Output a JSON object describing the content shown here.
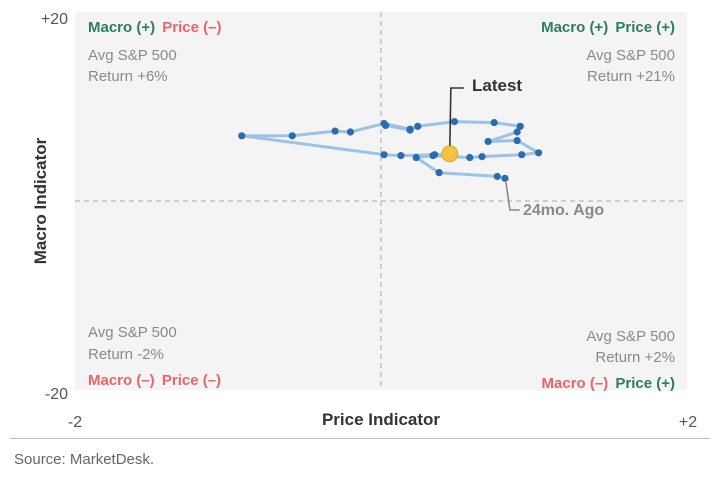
{
  "chart_data": {
    "type": "line",
    "xlabel": "Price Indicator",
    "ylabel": "Macro Indicator",
    "xlim": [
      -2,
      2
    ],
    "ylim": [
      -20,
      20
    ],
    "x_tick_labels": [
      "-2",
      "+2"
    ],
    "y_tick_labels": [
      "+20",
      "-20"
    ],
    "grid": false,
    "quadrants": {
      "top_left": {
        "macro": "Macro (+)",
        "price": "Price (–)",
        "avg_line1": "Avg S&P 500",
        "avg_line2": "Return +6%"
      },
      "top_right": {
        "macro": "Macro (+)",
        "price": "Price (+)",
        "avg_line1": "Avg S&P 500",
        "avg_line2": "Return +21%"
      },
      "bottom_left": {
        "macro": "Macro (–)",
        "price": "Price (–)",
        "avg_line1": "Avg S&P 500",
        "avg_line2": "Return -2%"
      },
      "bottom_right": {
        "macro": "Macro (–)",
        "price": "Price (+)",
        "avg_line1": "Avg S&P 500",
        "avg_line2": "Return +2%"
      }
    },
    "annotations": {
      "latest": "Latest",
      "ago": "24mo. Ago"
    },
    "series": [
      {
        "points": [
          {
            "x": 0.81,
            "y": 2.4
          },
          {
            "x": 0.76,
            "y": 2.6
          },
          {
            "x": 0.38,
            "y": 3.0
          },
          {
            "x": 0.23,
            "y": 4.6
          },
          {
            "x": 0.34,
            "y": 4.8
          },
          {
            "x": 0.58,
            "y": 4.6
          },
          {
            "x": 0.66,
            "y": 4.7
          },
          {
            "x": 0.92,
            "y": 4.9
          },
          {
            "x": 1.03,
            "y": 5.1
          },
          {
            "x": 0.89,
            "y": 6.4
          },
          {
            "x": 0.7,
            "y": 6.3
          },
          {
            "x": 0.89,
            "y": 7.3
          },
          {
            "x": 0.91,
            "y": 7.9
          },
          {
            "x": 0.74,
            "y": 8.3
          },
          {
            "x": 0.48,
            "y": 8.4
          },
          {
            "x": 0.24,
            "y": 7.9
          },
          {
            "x": 0.19,
            "y": 7.5
          },
          {
            "x": 0.03,
            "y": 8.0
          },
          {
            "x": 0.19,
            "y": 7.6
          },
          {
            "x": 0.02,
            "y": 8.2
          },
          {
            "x": -0.2,
            "y": 7.3
          },
          {
            "x": -0.3,
            "y": 7.4
          },
          {
            "x": -0.58,
            "y": 6.9
          },
          {
            "x": -0.91,
            "y": 6.9
          },
          {
            "x": 0.02,
            "y": 4.9
          },
          {
            "x": 0.13,
            "y": 4.8
          },
          {
            "x": 0.35,
            "y": 4.9
          },
          {
            "x": 0.45,
            "y": 5.0
          }
        ]
      }
    ],
    "latest_index": 27,
    "ago_index": 0
  },
  "footer": {
    "source": "Source: MarketDesk."
  },
  "colors": {
    "line": "#9cc3e6",
    "point": "#2b6cb0",
    "latest": "#f5c242",
    "green": "#2e7d5b",
    "red": "#e8646c"
  }
}
